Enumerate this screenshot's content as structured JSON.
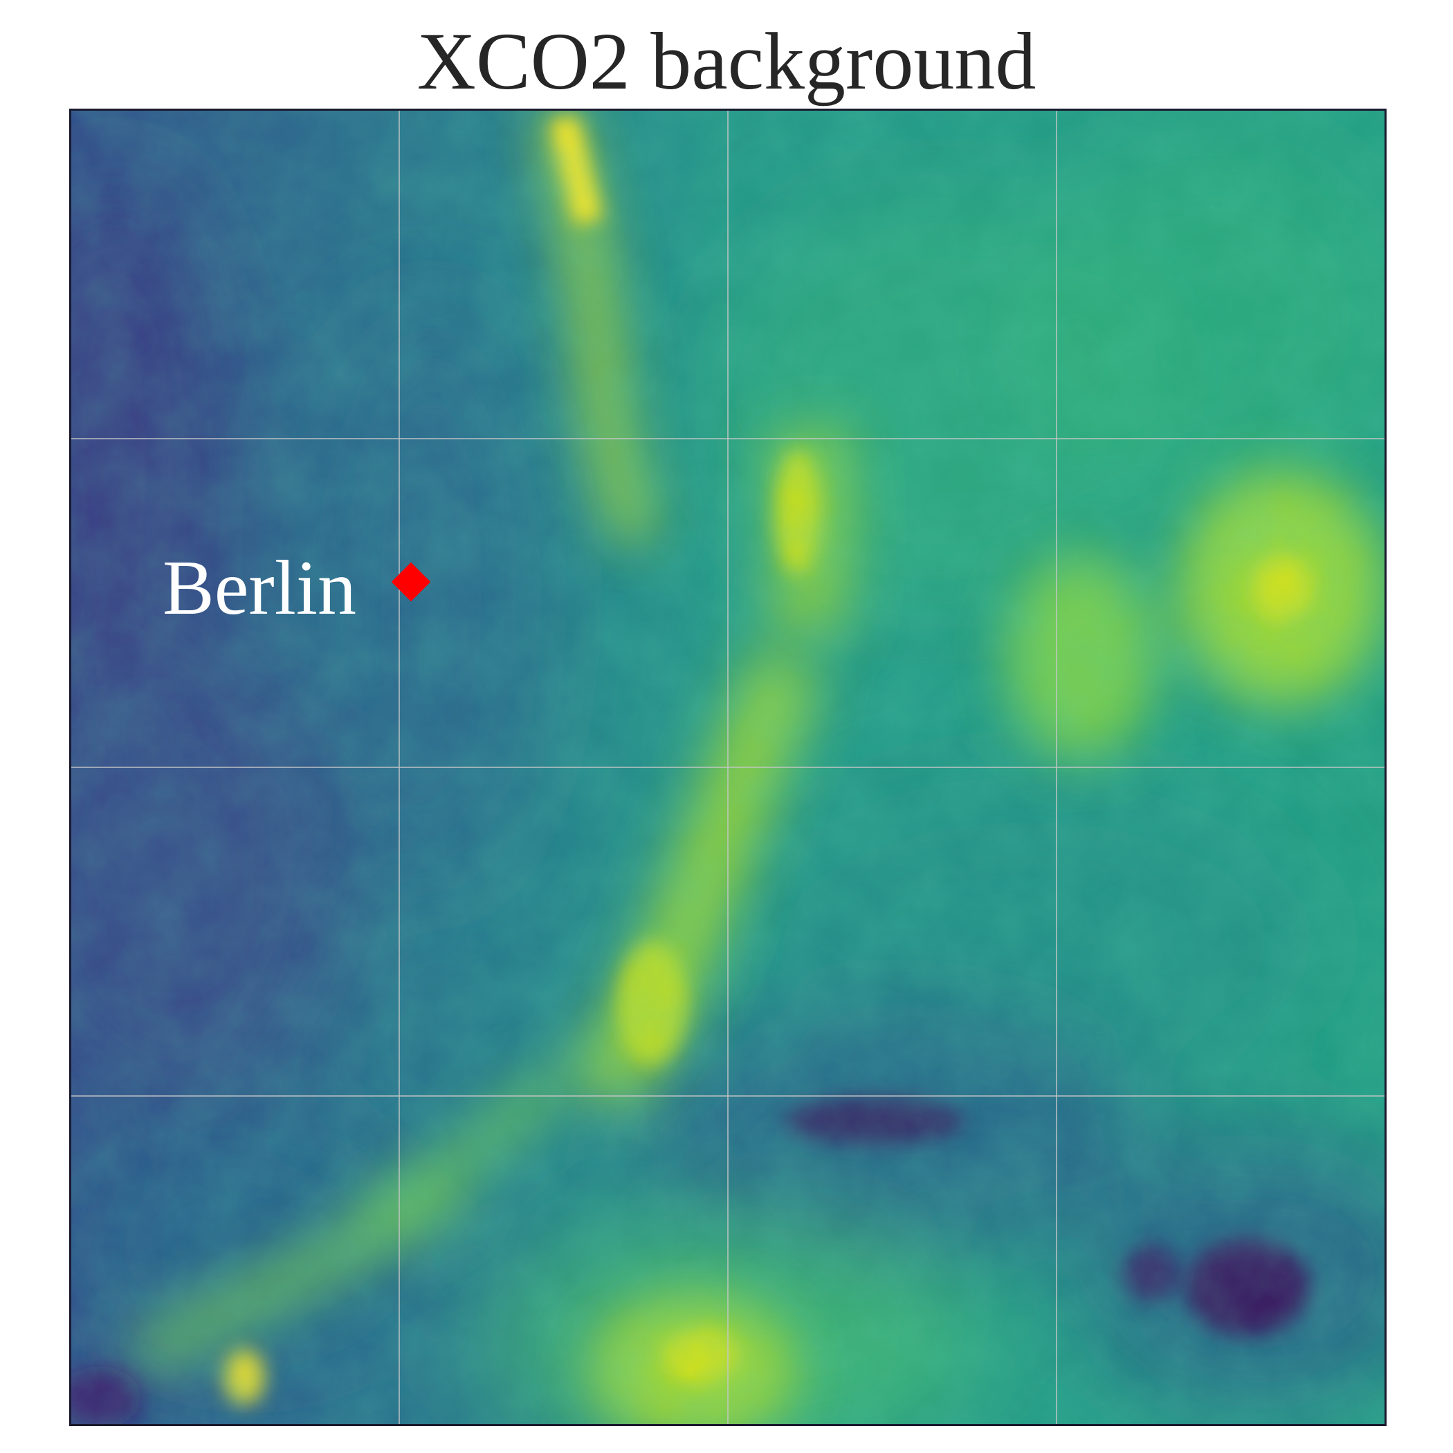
{
  "title": "XCO2 background",
  "city": {
    "label": "Berlin",
    "marker_color": "#ff0000"
  },
  "map": {
    "colormap": "viridis",
    "grid": true,
    "grid_color": "#c8c8c8",
    "frame_color": "#1a1a2e"
  }
}
